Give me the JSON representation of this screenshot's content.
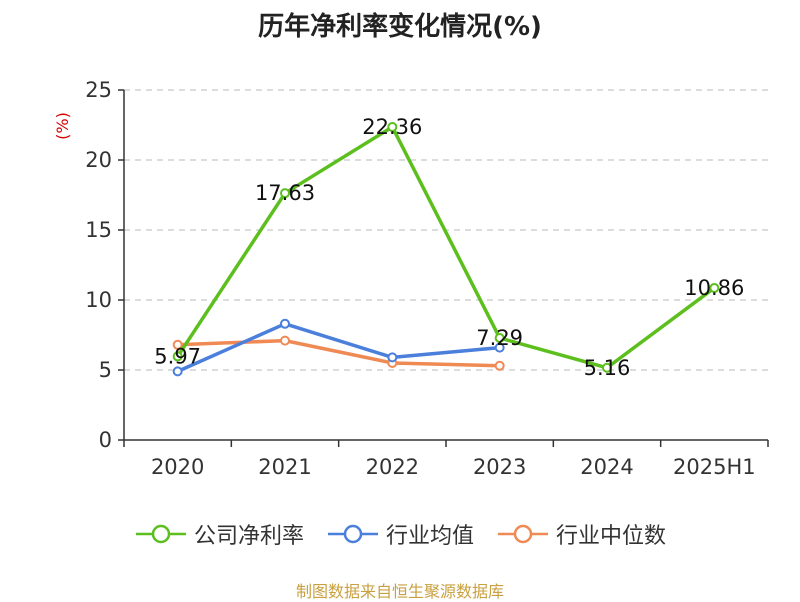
{
  "chart_data": {
    "type": "line",
    "title": "历年净利率变化情况(%)",
    "ylabel": "(%)",
    "categories": [
      "2020",
      "2021",
      "2022",
      "2023",
      "2024",
      "2025H1"
    ],
    "ylim": [
      0,
      25
    ],
    "yticks": [
      0,
      5,
      10,
      15,
      20,
      25
    ],
    "grid": true,
    "legend_position": "bottom",
    "series": [
      {
        "name": "公司净利率",
        "color": "#5cbf1e",
        "values": [
          5.97,
          17.63,
          22.36,
          7.29,
          5.16,
          10.86
        ],
        "labels": [
          "5.97",
          "17.63",
          "22.36",
          "7.29",
          "5.16",
          "10.86"
        ]
      },
      {
        "name": "行业均值",
        "color": "#4a7fdc",
        "values": [
          4.9,
          8.3,
          5.9,
          6.6,
          null,
          null
        ],
        "labels": []
      },
      {
        "name": "行业中位数",
        "color": "#f08a55",
        "values": [
          6.8,
          7.1,
          5.5,
          5.3,
          null,
          null
        ],
        "labels": []
      }
    ]
  },
  "footer": {
    "source": "制图数据来自恒生聚源数据库"
  }
}
